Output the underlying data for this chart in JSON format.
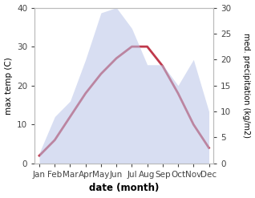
{
  "months": [
    "Jan",
    "Feb",
    "Mar",
    "Apr",
    "May",
    "Jun",
    "Jul",
    "Aug",
    "Sep",
    "Oct",
    "Nov",
    "Dec"
  ],
  "temperature": [
    2,
    6,
    12,
    18,
    23,
    27,
    30,
    30,
    25,
    18,
    10,
    4
  ],
  "precipitation": [
    2,
    9,
    12,
    20,
    29,
    30,
    26,
    19,
    19,
    15,
    20,
    10
  ],
  "temp_ylim": [
    0,
    40
  ],
  "precip_ylim": [
    0,
    30
  ],
  "temp_color": "#c0394b",
  "precip_fill_color": "#b8c4e8",
  "xlabel": "date (month)",
  "ylabel_left": "max temp (C)",
  "ylabel_right": "med. precipitation (kg/m2)",
  "bg_color": "#ffffff",
  "temp_linewidth": 2.0
}
